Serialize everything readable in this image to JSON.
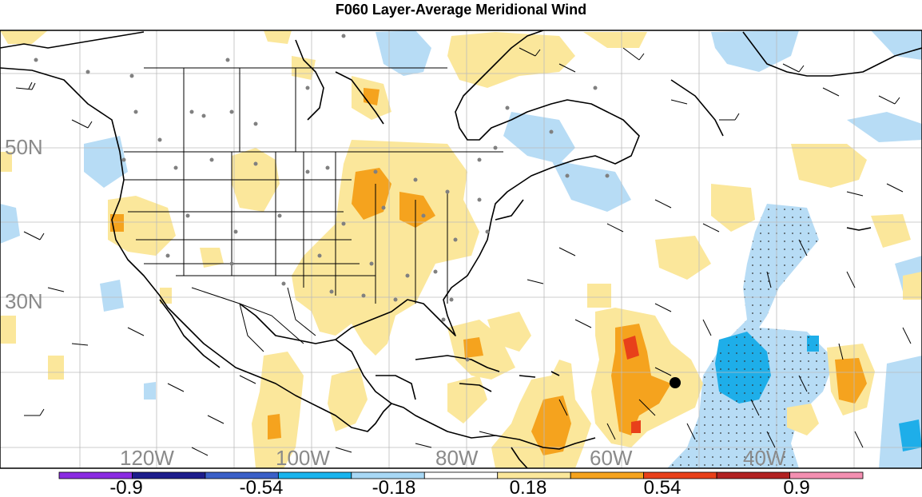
{
  "title": "F060 Layer-Average Meridional Wind",
  "map": {
    "lat_labels": [
      "50N",
      "30N"
    ],
    "lon_labels": [
      "120W",
      "100W",
      "80W",
      "60W",
      "40W"
    ],
    "colors": {
      "light_blue": "#b7dcf5",
      "medium_blue": "#2db7ee",
      "deep_blue": "#0096e6",
      "light_yellow": "#fbe79b",
      "orange": "#f5a31e",
      "dark_orange": "#f07a14",
      "red": "#e8401a",
      "coast": "#000000",
      "grid": "#c0c0c0"
    }
  },
  "colorbar": {
    "labels": [
      "-0.9",
      "-0.54",
      "-0.18",
      "0.18",
      "0.54",
      "0.9"
    ],
    "colors": [
      "#8a2be2",
      "#1c1c8c",
      "#3a5fc8",
      "#19b4ee",
      "#a8d8f5",
      "#ffffff",
      "#fbe79b",
      "#f5a31e",
      "#e8401a",
      "#b22222",
      "#f48fb1"
    ]
  }
}
